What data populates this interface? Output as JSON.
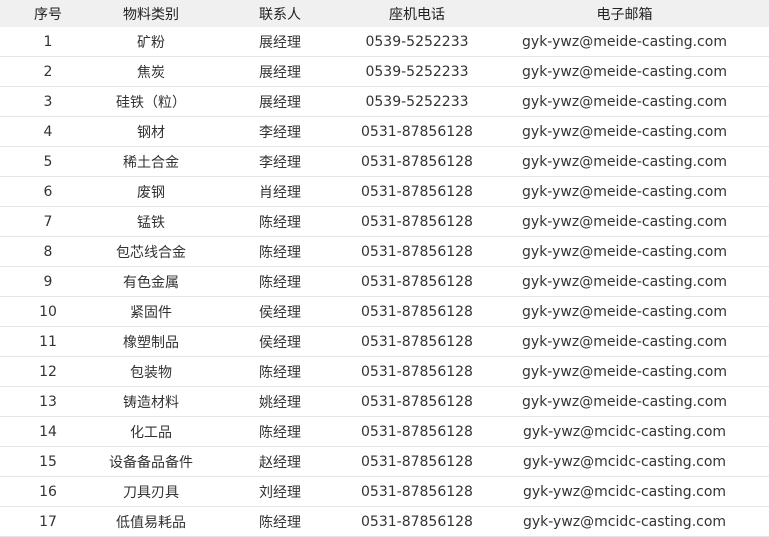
{
  "headers": [
    "序号",
    "物料类别",
    "联系人",
    "座机电话",
    "电子邮箱"
  ],
  "rows": [
    [
      "1",
      "矿粉",
      "展经理",
      "0539-5252233",
      "gyk-ywz@meide-casting.com"
    ],
    [
      "2",
      "焦炭",
      "展经理",
      "0539-5252233",
      "gyk-ywz@meide-casting.com"
    ],
    [
      "3",
      "硅铁（粒）",
      "展经理",
      "0539-5252233",
      "gyk-ywz@meide-casting.com"
    ],
    [
      "4",
      "钢材",
      "李经理",
      "0531-87856128",
      "gyk-ywz@meide-casting.com"
    ],
    [
      "5",
      "稀土合金",
      "李经理",
      "0531-87856128",
      "gyk-ywz@meide-casting.com"
    ],
    [
      "6",
      "废钢",
      "肖经理",
      "0531-87856128",
      "gyk-ywz@meide-casting.com"
    ],
    [
      "7",
      "锰铁",
      "陈经理",
      "0531-87856128",
      "gyk-ywz@meide-casting.com"
    ],
    [
      "8",
      "包芯线合金",
      "陈经理",
      "0531-87856128",
      "gyk-ywz@meide-casting.com"
    ],
    [
      "9",
      "有色金属",
      "陈经理",
      "0531-87856128",
      "gyk-ywz@meide-casting.com"
    ],
    [
      "10",
      "紧固件",
      "侯经理",
      "0531-87856128",
      "gyk-ywz@meide-casting.com"
    ],
    [
      "11",
      "橡塑制品",
      "侯经理",
      "0531-87856128",
      "gyk-ywz@meide-casting.com"
    ],
    [
      "12",
      "包装物",
      "陈经理",
      "0531-87856128",
      "gyk-ywz@meide-casting.com"
    ],
    [
      "13",
      "铸造材料",
      "姚经理",
      "0531-87856128",
      "gyk-ywz@meide-casting.com"
    ],
    [
      "14",
      "化工品",
      "陈经理",
      "0531-87856128",
      "gyk-ywz@mcidc-casting.com"
    ],
    [
      "15",
      "设备备品备件",
      "赵经理",
      "0531-87856128",
      "gyk-ywz@mcidc-casting.com"
    ],
    [
      "16",
      "刀具刃具",
      "刘经理",
      "0531-87856128",
      "gyk-ywz@mcidc-casting.com"
    ],
    [
      "17",
      "低值易耗品",
      "陈经理",
      "0531-87856128",
      "gyk-ywz@mcidc-casting.com"
    ]
  ]
}
